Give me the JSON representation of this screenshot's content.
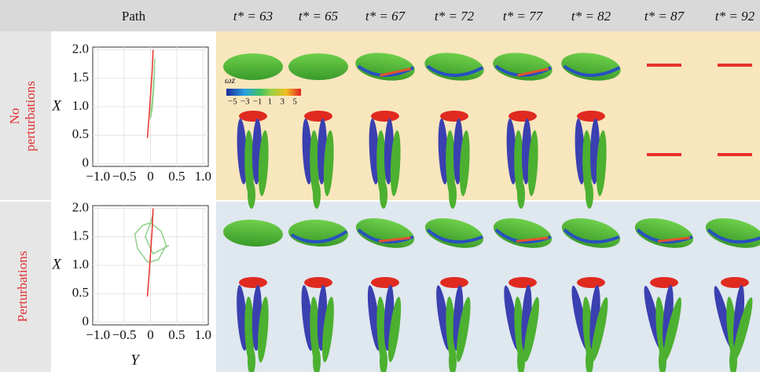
{
  "header": {
    "path": "Path",
    "times": [
      "t* = 63",
      "t* = 65",
      "t* = 67",
      "t* = 72",
      "t* = 77",
      "t* = 82",
      "t* = 87",
      "t* = 92"
    ]
  },
  "rows": [
    {
      "label": [
        "No",
        "perturbations"
      ]
    },
    {
      "label": [
        "Perturbations"
      ]
    }
  ],
  "colorbar": {
    "label": "ωz",
    "clim": [
      -6,
      6
    ],
    "ticks": [
      {
        "value": -5,
        "label": "−5"
      },
      {
        "value": -3,
        "label": "−3"
      },
      {
        "value": -1,
        "label": "−1"
      },
      1,
      3,
      5
    ]
  },
  "chart_data": [
    {
      "type": "line",
      "ylabel": "X",
      "xlim": [
        -1.1,
        1.1
      ],
      "ylim": [
        -0.05,
        2.05
      ],
      "xticks": [
        {
          "value": -1,
          "label": "−1.0"
        },
        {
          "value": -0.5,
          "label": "−0.5"
        },
        0,
        0.5,
        {
          "value": 1,
          "label": "1.0"
        }
      ],
      "yticks": [
        0,
        0.5,
        {
          "value": 1,
          "label": "1.0"
        },
        1.5,
        {
          "value": 2,
          "label": "2.0"
        }
      ],
      "series": [
        {
          "color": "#8fd08a",
          "x": [
            0.08,
            0.07,
            0.05,
            0.02,
            0.0,
            0.03,
            0.06,
            0.08
          ],
          "values": [
            1.85,
            1.6,
            1.3,
            1.0,
            0.8,
            0.95,
            1.3,
            1.7
          ]
        },
        {
          "color": "#e8312b",
          "x": [
            -0.06,
            -0.03,
            0.0,
            0.03,
            0.05
          ],
          "values": [
            0.45,
            0.8,
            1.2,
            1.6,
            2.0
          ]
        }
      ]
    },
    {
      "type": "line",
      "ylabel": "X",
      "xlabel": "Y",
      "xlim": [
        -1.1,
        1.1
      ],
      "ylim": [
        -0.05,
        2.05
      ],
      "xticks": [
        {
          "value": -1,
          "label": "−1.0"
        },
        {
          "value": -0.5,
          "label": "−0.5"
        },
        0,
        0.5,
        {
          "value": 1,
          "label": "1.0"
        }
      ],
      "yticks": [
        0,
        0.5,
        {
          "value": 1,
          "label": "1.0"
        },
        1.5,
        {
          "value": 2,
          "label": "2.0"
        }
      ],
      "series": [
        {
          "color": "#8fd08a",
          "x": [
            0.05,
            0.0,
            -0.15,
            -0.3,
            -0.25,
            -0.05,
            0.15,
            0.3,
            0.2,
            0.0,
            -0.1,
            0.05,
            0.35
          ],
          "values": [
            1.9,
            1.75,
            1.7,
            1.55,
            1.3,
            1.05,
            1.1,
            1.35,
            1.6,
            1.75,
            1.5,
            1.2,
            1.35
          ]
        },
        {
          "color": "#e8312b",
          "x": [
            -0.06,
            -0.03,
            0.0,
            0.03,
            0.05
          ],
          "values": [
            0.45,
            0.8,
            1.2,
            1.6,
            2.0
          ]
        }
      ]
    }
  ]
}
